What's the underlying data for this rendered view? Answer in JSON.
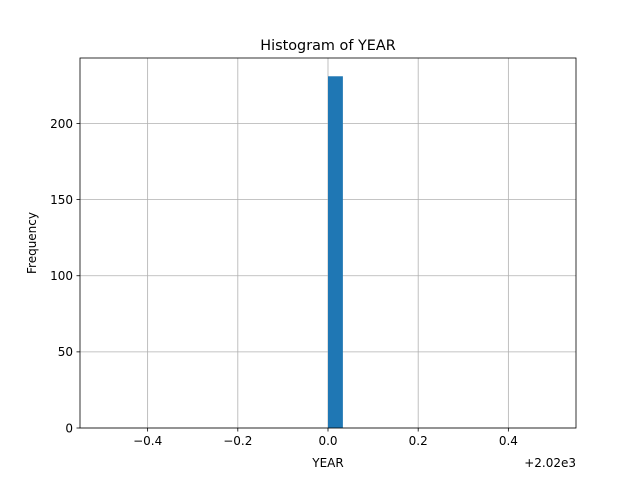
{
  "chart_data": {
    "type": "bar",
    "title": "Histogram of YEAR",
    "xlabel": "YEAR",
    "ylabel": "Frequency",
    "x_offset_label": "+2.02e3",
    "xlim": [
      -0.55,
      0.55
    ],
    "ylim": [
      0,
      243
    ],
    "xticks": [
      -0.4,
      -0.2,
      0.0,
      0.2,
      0.4
    ],
    "xtick_labels": [
      "−0.4",
      "−0.2",
      "0.0",
      "0.2",
      "0.4"
    ],
    "yticks": [
      0,
      50,
      100,
      150,
      200
    ],
    "ytick_labels": [
      "0",
      "50",
      "100",
      "150",
      "200"
    ],
    "grid": true,
    "bar_color": "#1f77b4",
    "bins": [
      {
        "x0": 0.0,
        "x1": 0.033,
        "value": 231
      }
    ]
  }
}
